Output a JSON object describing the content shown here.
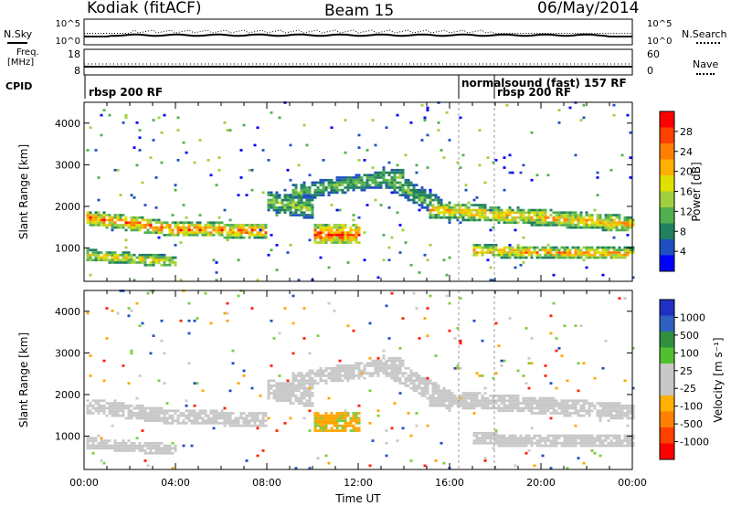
{
  "header": {
    "station": "Kodiak (fitACF)",
    "beam": "Beam 15",
    "date": "06/May/2014"
  },
  "top_panels": {
    "nsky_label": "N.Sky",
    "nsearch_label": "N.Search",
    "noise_ticks_left": [
      "10^5",
      "10^0"
    ],
    "noise_ticks_right": [
      "10^5",
      "10^0"
    ],
    "freq_label_1": "Freq.",
    "freq_label_2": "[MHz]",
    "freq_ticks": [
      "18",
      "8"
    ],
    "nave_label": "Nave",
    "nave_ticks": [
      "60",
      "0"
    ],
    "cpid_label": "CPID",
    "cpid_segments": [
      {
        "text": "rbsp 200 RF"
      },
      {
        "text": "normalsound (fast) 157 RF"
      },
      {
        "text": "rbsp 200 RF"
      }
    ]
  },
  "chart_data": [
    {
      "type": "heatmap",
      "name": "power-panel",
      "ylabel": "Slant Range [km]",
      "x_range_hours": [
        0,
        24
      ],
      "ylim": [
        200,
        4500
      ],
      "y_ticks": [
        1000,
        2000,
        3000,
        4000
      ],
      "colorbar": {
        "label": "Power [dB]",
        "ticks": [
          "28",
          "24",
          "20",
          "16",
          "12",
          "8",
          "4"
        ],
        "colors": [
          "#ff0000",
          "#ff4000",
          "#ff8000",
          "#ffb000",
          "#e0e000",
          "#a0d040",
          "#50b050",
          "#208060",
          "#2050c0",
          "#0000ff"
        ]
      }
    },
    {
      "type": "heatmap",
      "name": "velocity-panel",
      "ylabel": "Slant Range [km]",
      "xlabel": "Time UT",
      "x_range_hours": [
        0,
        24
      ],
      "x_tick_labels": [
        "00:00",
        "04:00",
        "08:00",
        "12:00",
        "16:00",
        "20:00",
        "00:00"
      ],
      "ylim": [
        200,
        4500
      ],
      "y_ticks": [
        1000,
        2000,
        3000,
        4000
      ],
      "colorbar": {
        "label": "Velocity [m s⁻¹]",
        "ticks": [
          "1000",
          "500",
          "100",
          "25",
          "-25",
          "-100",
          "-500",
          "-1000"
        ],
        "colors": [
          "#2030c0",
          "#3060c0",
          "#309040",
          "#50c030",
          "#c8c8c8",
          "#c8c8c8",
          "#ffb000",
          "#ff8000",
          "#ff4000",
          "#ff0000"
        ]
      }
    }
  ]
}
